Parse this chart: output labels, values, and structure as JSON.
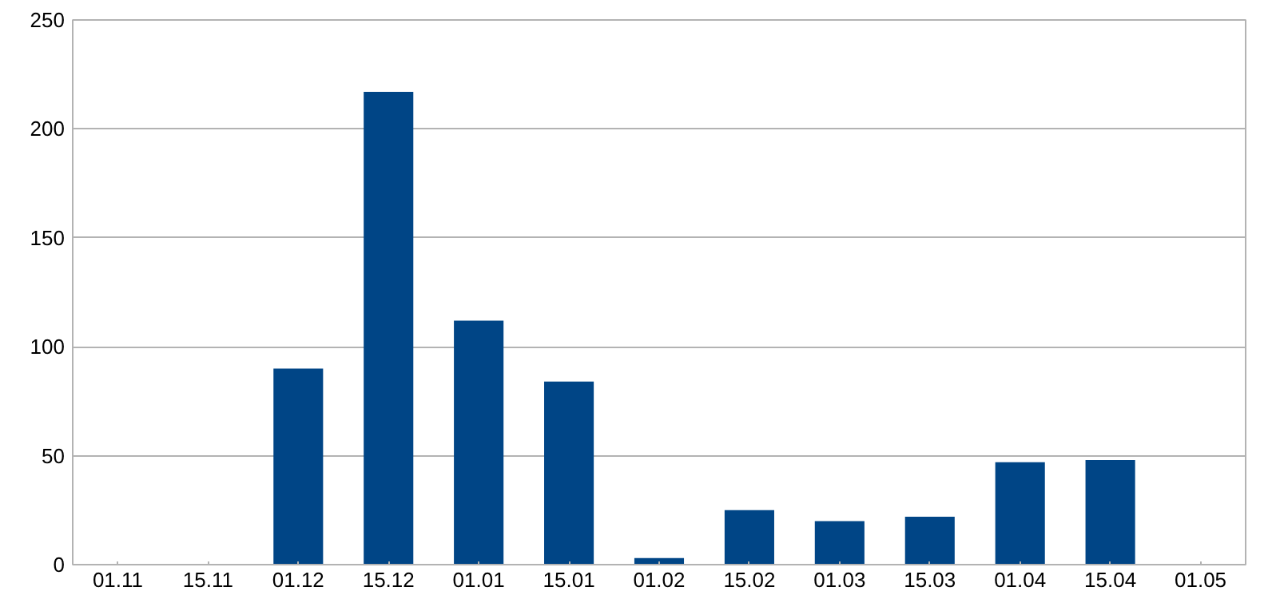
{
  "chart_data": {
    "type": "bar",
    "categories": [
      "01.11",
      "15.11",
      "01.12",
      "15.12",
      "01.01",
      "15.01",
      "01.02",
      "15.02",
      "01.03",
      "15.03",
      "01.04",
      "15.04",
      "01.05"
    ],
    "values": [
      0,
      0,
      90,
      217,
      112,
      84,
      3,
      25,
      20,
      22,
      47,
      48,
      0
    ],
    "color": "#004586",
    "ylim": [
      0,
      250
    ],
    "yticks": [
      0,
      50,
      100,
      150,
      200,
      250
    ],
    "grid": "y"
  }
}
